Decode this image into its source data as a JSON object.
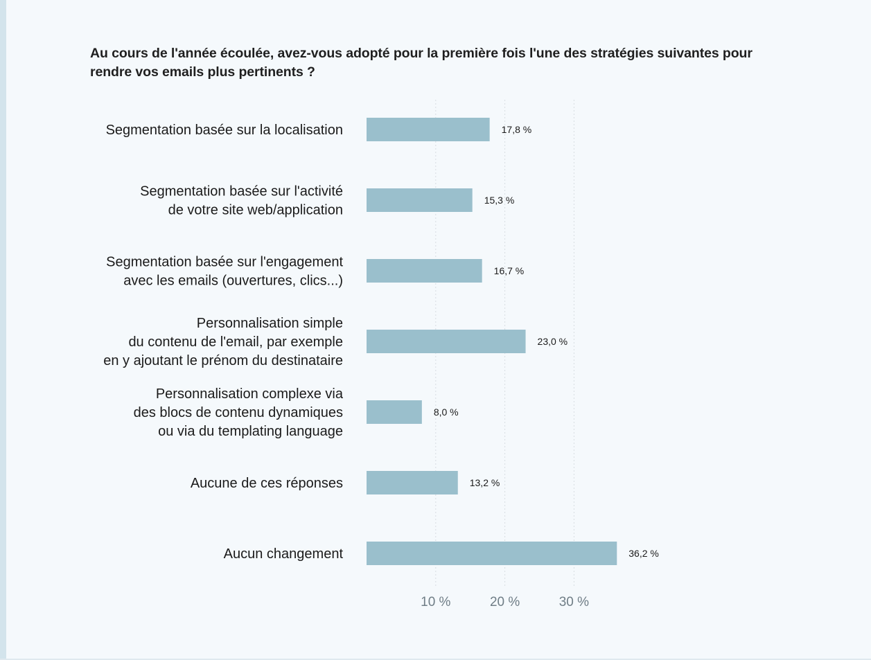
{
  "title": "Au cours de l'année écoulée, avez-vous adopté pour la première fois l'une des stratégies suivantes pour rendre vos emails plus pertinents ?",
  "chart_data": {
    "type": "bar",
    "orientation": "horizontal",
    "title": "Au cours de l'année écoulée, avez-vous adopté pour la première fois l'une des stratégies suivantes pour rendre vos emails plus pertinents ?",
    "categories": [
      [
        "Segmentation basée sur la localisation"
      ],
      [
        "Segmentation basée sur l'activité",
        "de votre site web/application"
      ],
      [
        "Segmentation basée sur l'engagement",
        "avec les emails (ouvertures, clics...)"
      ],
      [
        "Personnalisation simple",
        "du contenu de l'email, par exemple",
        "en y ajoutant le prénom du destinataire"
      ],
      [
        "Personnalisation complexe via",
        "des blocs de contenu dynamiques",
        "ou via du templating language"
      ],
      [
        "Aucune de ces réponses"
      ],
      [
        "Aucun changement"
      ]
    ],
    "values": [
      17.8,
      15.3,
      16.7,
      23.0,
      8.0,
      13.2,
      36.2
    ],
    "value_labels": [
      "17,8 %",
      "15,3 %",
      "16,7 %",
      "23,0 %",
      "8,0 %",
      "13,2 %",
      "36,2 %"
    ],
    "xlim": [
      0,
      40
    ],
    "xticks": [
      10,
      20,
      30
    ],
    "xtick_labels": [
      "10 %",
      "20 %",
      "30 %"
    ],
    "xlabel": "",
    "ylabel": "",
    "grid": "vertical dotted",
    "legend": "none",
    "bar_color": "#9abfcc",
    "grid_color": "#d8dde2",
    "tick_color": "#6f7d86"
  }
}
